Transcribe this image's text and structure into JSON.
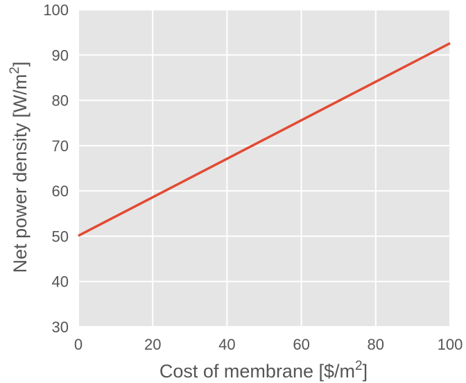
{
  "chart_data": {
    "type": "line",
    "xlabel": {
      "main": "Cost of membrane [$/m",
      "superscript": "2",
      "suffix": "]"
    },
    "ylabel": {
      "main": "Net power density [W/m",
      "superscript": "2",
      "suffix": "]"
    },
    "xlim": [
      0,
      100
    ],
    "ylim": [
      30,
      100
    ],
    "x_ticks": [
      0,
      20,
      40,
      60,
      80,
      100
    ],
    "y_ticks": [
      30,
      40,
      50,
      60,
      70,
      80,
      90,
      100
    ],
    "grid": true,
    "series": [
      {
        "x": [
          0,
          20,
          40,
          60,
          80,
          100
        ],
        "y": [
          50.1,
          58.6,
          67.1,
          75.6,
          84.1,
          92.6
        ],
        "color": "#E24A33"
      }
    ]
  },
  "colors": {
    "plot_background": "#E5E5E5",
    "grid": "#FFFFFF",
    "text": "#555555",
    "line": "#E24A33"
  }
}
